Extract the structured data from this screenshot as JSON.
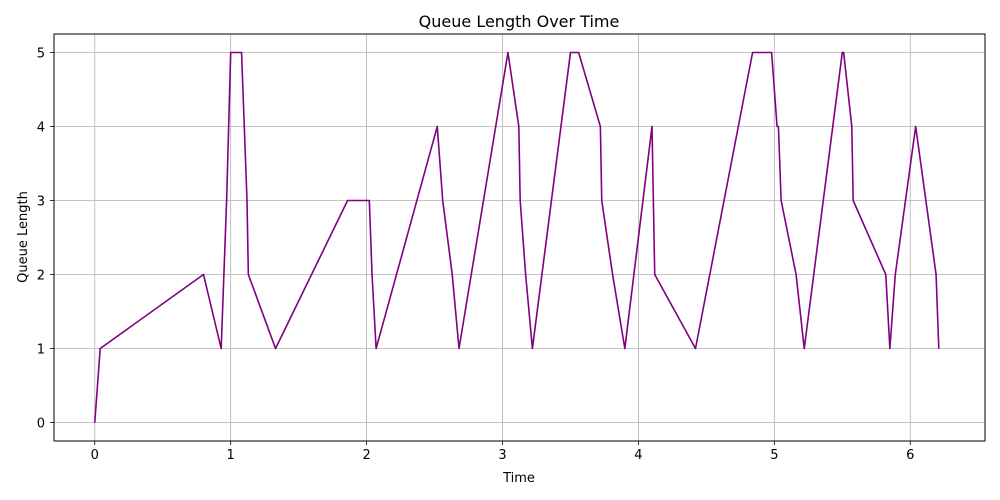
{
  "chart_data": {
    "type": "line",
    "title": "Queue Length Over Time",
    "xlabel": "Time",
    "ylabel": "Queue Length",
    "xlim": [
      -0.3,
      6.55
    ],
    "ylim": [
      -0.25,
      5.25
    ],
    "xticks": [
      0,
      1,
      2,
      3,
      4,
      5,
      6
    ],
    "yticks": [
      0,
      1,
      2,
      3,
      4,
      5
    ],
    "grid": true,
    "line_color": "#800080",
    "series": [
      {
        "x": [
          0.0,
          0.04,
          0.8,
          0.93,
          0.97,
          1.0,
          1.08,
          1.12,
          1.13,
          1.33,
          1.86,
          2.02,
          2.04,
          2.07,
          2.52,
          2.56,
          2.63,
          2.68,
          3.04,
          3.12,
          3.13,
          3.17,
          3.22,
          3.5,
          3.56,
          3.72,
          3.73,
          3.81,
          3.9,
          4.1,
          4.11,
          4.12,
          4.42,
          4.84,
          4.98,
          5.02,
          5.03,
          5.05,
          5.16,
          5.22,
          5.5,
          5.51,
          5.57,
          5.58,
          5.82,
          5.85,
          5.89,
          6.04,
          6.19,
          6.21
        ],
        "y": [
          0,
          1,
          2,
          1,
          3,
          5,
          5,
          3,
          2,
          1,
          3,
          3,
          2,
          1,
          4,
          3,
          2,
          1,
          5,
          4,
          3,
          2,
          1,
          5,
          5,
          4,
          3,
          2,
          1,
          4,
          3,
          2,
          1,
          5,
          5,
          4,
          4,
          3,
          2,
          1,
          5,
          5,
          4,
          3,
          2,
          1,
          2,
          4,
          2,
          1
        ]
      }
    ]
  }
}
